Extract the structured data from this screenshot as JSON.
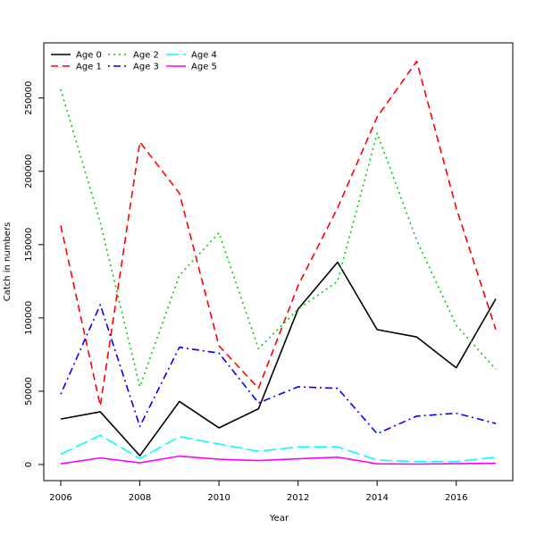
{
  "chart_data": {
    "type": "line",
    "title": "",
    "xlabel": "Year",
    "ylabel": "Catch in numbers",
    "x": [
      2006,
      2007,
      2008,
      2009,
      2010,
      2011,
      2012,
      2013,
      2014,
      2015,
      2016,
      2017
    ],
    "xlim": [
      2006,
      2017
    ],
    "ylim": [
      0,
      276000
    ],
    "x_ticks": [
      2006,
      2008,
      2010,
      2012,
      2014,
      2016
    ],
    "y_ticks": [
      0,
      50000,
      100000,
      150000,
      200000,
      250000
    ],
    "grid": false,
    "legend_position": "top-left",
    "series": [
      {
        "name": "Age 0",
        "color": "#000000",
        "dash": "solid",
        "values": [
          31000,
          36000,
          6000,
          43000,
          25000,
          38000,
          106000,
          138000,
          92000,
          87000,
          66000,
          113000
        ]
      },
      {
        "name": "Age 1",
        "color": "#ff0000",
        "dash": "dashed",
        "values": [
          163000,
          40000,
          220000,
          185000,
          81000,
          52000,
          122000,
          175000,
          237000,
          275000,
          175000,
          92000
        ]
      },
      {
        "name": "Age 2",
        "color": "#00cd00",
        "dash": "dotted",
        "values": [
          256000,
          165000,
          53000,
          129000,
          158000,
          79000,
          106000,
          125000,
          226000,
          153000,
          95000,
          65000
        ]
      },
      {
        "name": "Age 3",
        "color": "#0000ff",
        "dash": "dotdash",
        "values": [
          48000,
          109000,
          26000,
          80000,
          76000,
          42000,
          53000,
          52000,
          21000,
          33000,
          35000,
          28000
        ]
      },
      {
        "name": "Age 4",
        "color": "#00ffff",
        "dash": "longdash",
        "values": [
          7000,
          20000,
          4000,
          19000,
          14000,
          9000,
          12000,
          12000,
          3000,
          2000,
          2000,
          5000
        ]
      },
      {
        "name": "Age 5",
        "color": "#ff00ff",
        "dash": "solid",
        "values": [
          500,
          4500,
          1200,
          5700,
          3600,
          2700,
          3900,
          5000,
          500,
          300,
          600,
          900
        ]
      }
    ]
  }
}
